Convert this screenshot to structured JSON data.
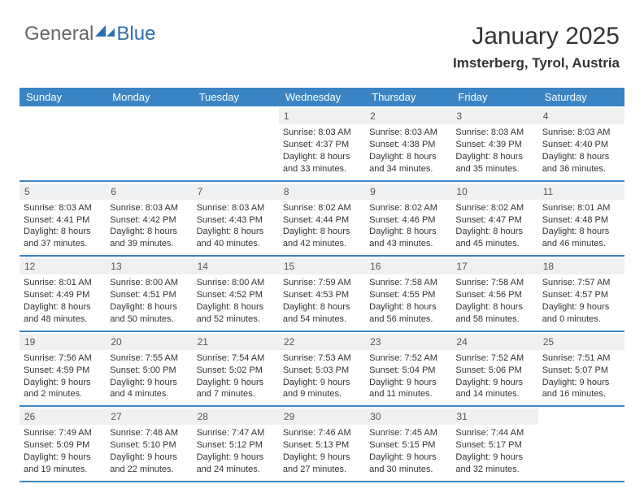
{
  "logo": {
    "text1": "General",
    "text2": "Blue",
    "color1": "#676767",
    "color2": "#2f6faf"
  },
  "title": "January 2025",
  "location": "Imsterberg, Tyrol, Austria",
  "header_bg": "#3b84c4",
  "daynum_bg": "#eef0f2",
  "week_border": "#3b84c4",
  "day_names": [
    "Sunday",
    "Monday",
    "Tuesday",
    "Wednesday",
    "Thursday",
    "Friday",
    "Saturday"
  ],
  "weeks": [
    [
      {
        "empty": true
      },
      {
        "empty": true
      },
      {
        "empty": true
      },
      {
        "day": 1,
        "sunrise": "8:03 AM",
        "sunset": "4:37 PM",
        "daylight": "8 hours and 33 minutes."
      },
      {
        "day": 2,
        "sunrise": "8:03 AM",
        "sunset": "4:38 PM",
        "daylight": "8 hours and 34 minutes."
      },
      {
        "day": 3,
        "sunrise": "8:03 AM",
        "sunset": "4:39 PM",
        "daylight": "8 hours and 35 minutes."
      },
      {
        "day": 4,
        "sunrise": "8:03 AM",
        "sunset": "4:40 PM",
        "daylight": "8 hours and 36 minutes."
      }
    ],
    [
      {
        "day": 5,
        "sunrise": "8:03 AM",
        "sunset": "4:41 PM",
        "daylight": "8 hours and 37 minutes."
      },
      {
        "day": 6,
        "sunrise": "8:03 AM",
        "sunset": "4:42 PM",
        "daylight": "8 hours and 39 minutes."
      },
      {
        "day": 7,
        "sunrise": "8:03 AM",
        "sunset": "4:43 PM",
        "daylight": "8 hours and 40 minutes."
      },
      {
        "day": 8,
        "sunrise": "8:02 AM",
        "sunset": "4:44 PM",
        "daylight": "8 hours and 42 minutes."
      },
      {
        "day": 9,
        "sunrise": "8:02 AM",
        "sunset": "4:46 PM",
        "daylight": "8 hours and 43 minutes."
      },
      {
        "day": 10,
        "sunrise": "8:02 AM",
        "sunset": "4:47 PM",
        "daylight": "8 hours and 45 minutes."
      },
      {
        "day": 11,
        "sunrise": "8:01 AM",
        "sunset": "4:48 PM",
        "daylight": "8 hours and 46 minutes."
      }
    ],
    [
      {
        "day": 12,
        "sunrise": "8:01 AM",
        "sunset": "4:49 PM",
        "daylight": "8 hours and 48 minutes."
      },
      {
        "day": 13,
        "sunrise": "8:00 AM",
        "sunset": "4:51 PM",
        "daylight": "8 hours and 50 minutes."
      },
      {
        "day": 14,
        "sunrise": "8:00 AM",
        "sunset": "4:52 PM",
        "daylight": "8 hours and 52 minutes."
      },
      {
        "day": 15,
        "sunrise": "7:59 AM",
        "sunset": "4:53 PM",
        "daylight": "8 hours and 54 minutes."
      },
      {
        "day": 16,
        "sunrise": "7:58 AM",
        "sunset": "4:55 PM",
        "daylight": "8 hours and 56 minutes."
      },
      {
        "day": 17,
        "sunrise": "7:58 AM",
        "sunset": "4:56 PM",
        "daylight": "8 hours and 58 minutes."
      },
      {
        "day": 18,
        "sunrise": "7:57 AM",
        "sunset": "4:57 PM",
        "daylight": "9 hours and 0 minutes."
      }
    ],
    [
      {
        "day": 19,
        "sunrise": "7:56 AM",
        "sunset": "4:59 PM",
        "daylight": "9 hours and 2 minutes."
      },
      {
        "day": 20,
        "sunrise": "7:55 AM",
        "sunset": "5:00 PM",
        "daylight": "9 hours and 4 minutes."
      },
      {
        "day": 21,
        "sunrise": "7:54 AM",
        "sunset": "5:02 PM",
        "daylight": "9 hours and 7 minutes."
      },
      {
        "day": 22,
        "sunrise": "7:53 AM",
        "sunset": "5:03 PM",
        "daylight": "9 hours and 9 minutes."
      },
      {
        "day": 23,
        "sunrise": "7:52 AM",
        "sunset": "5:04 PM",
        "daylight": "9 hours and 11 minutes."
      },
      {
        "day": 24,
        "sunrise": "7:52 AM",
        "sunset": "5:06 PM",
        "daylight": "9 hours and 14 minutes."
      },
      {
        "day": 25,
        "sunrise": "7:51 AM",
        "sunset": "5:07 PM",
        "daylight": "9 hours and 16 minutes."
      }
    ],
    [
      {
        "day": 26,
        "sunrise": "7:49 AM",
        "sunset": "5:09 PM",
        "daylight": "9 hours and 19 minutes."
      },
      {
        "day": 27,
        "sunrise": "7:48 AM",
        "sunset": "5:10 PM",
        "daylight": "9 hours and 22 minutes."
      },
      {
        "day": 28,
        "sunrise": "7:47 AM",
        "sunset": "5:12 PM",
        "daylight": "9 hours and 24 minutes."
      },
      {
        "day": 29,
        "sunrise": "7:46 AM",
        "sunset": "5:13 PM",
        "daylight": "9 hours and 27 minutes."
      },
      {
        "day": 30,
        "sunrise": "7:45 AM",
        "sunset": "5:15 PM",
        "daylight": "9 hours and 30 minutes."
      },
      {
        "day": 31,
        "sunrise": "7:44 AM",
        "sunset": "5:17 PM",
        "daylight": "9 hours and 32 minutes."
      },
      {
        "empty": true
      }
    ]
  ]
}
